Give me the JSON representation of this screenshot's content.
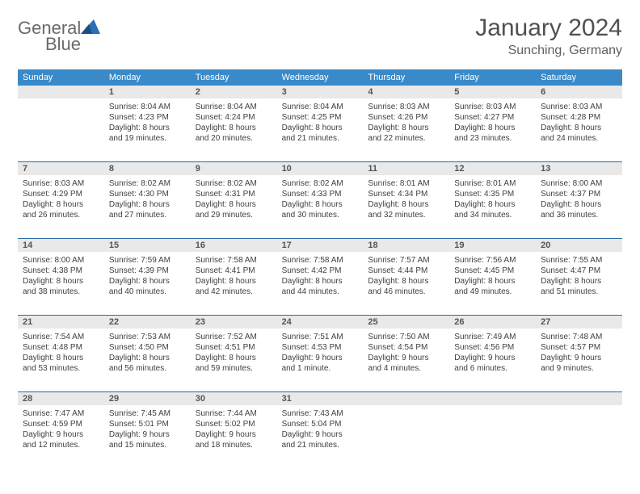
{
  "logo": {
    "word1": "General",
    "word2": "Blue"
  },
  "title": "January 2024",
  "subtitle": "Sunching, Germany",
  "colors": {
    "header_bg": "#3a8ac9",
    "daynum_bg": "#e9e9e9",
    "rule": "#2a6aa8",
    "text": "#404040",
    "title": "#505050",
    "logo_gray": "#6a6a6a",
    "logo_blue": "#2b6fb5"
  },
  "dow": [
    "Sunday",
    "Monday",
    "Tuesday",
    "Wednesday",
    "Thursday",
    "Friday",
    "Saturday"
  ],
  "weeks": [
    [
      {
        "n": "",
        "sr": "",
        "ss": "",
        "d1": "",
        "d2": ""
      },
      {
        "n": "1",
        "sr": "Sunrise: 8:04 AM",
        "ss": "Sunset: 4:23 PM",
        "d1": "Daylight: 8 hours",
        "d2": "and 19 minutes."
      },
      {
        "n": "2",
        "sr": "Sunrise: 8:04 AM",
        "ss": "Sunset: 4:24 PM",
        "d1": "Daylight: 8 hours",
        "d2": "and 20 minutes."
      },
      {
        "n": "3",
        "sr": "Sunrise: 8:04 AM",
        "ss": "Sunset: 4:25 PM",
        "d1": "Daylight: 8 hours",
        "d2": "and 21 minutes."
      },
      {
        "n": "4",
        "sr": "Sunrise: 8:03 AM",
        "ss": "Sunset: 4:26 PM",
        "d1": "Daylight: 8 hours",
        "d2": "and 22 minutes."
      },
      {
        "n": "5",
        "sr": "Sunrise: 8:03 AM",
        "ss": "Sunset: 4:27 PM",
        "d1": "Daylight: 8 hours",
        "d2": "and 23 minutes."
      },
      {
        "n": "6",
        "sr": "Sunrise: 8:03 AM",
        "ss": "Sunset: 4:28 PM",
        "d1": "Daylight: 8 hours",
        "d2": "and 24 minutes."
      }
    ],
    [
      {
        "n": "7",
        "sr": "Sunrise: 8:03 AM",
        "ss": "Sunset: 4:29 PM",
        "d1": "Daylight: 8 hours",
        "d2": "and 26 minutes."
      },
      {
        "n": "8",
        "sr": "Sunrise: 8:02 AM",
        "ss": "Sunset: 4:30 PM",
        "d1": "Daylight: 8 hours",
        "d2": "and 27 minutes."
      },
      {
        "n": "9",
        "sr": "Sunrise: 8:02 AM",
        "ss": "Sunset: 4:31 PM",
        "d1": "Daylight: 8 hours",
        "d2": "and 29 minutes."
      },
      {
        "n": "10",
        "sr": "Sunrise: 8:02 AM",
        "ss": "Sunset: 4:33 PM",
        "d1": "Daylight: 8 hours",
        "d2": "and 30 minutes."
      },
      {
        "n": "11",
        "sr": "Sunrise: 8:01 AM",
        "ss": "Sunset: 4:34 PM",
        "d1": "Daylight: 8 hours",
        "d2": "and 32 minutes."
      },
      {
        "n": "12",
        "sr": "Sunrise: 8:01 AM",
        "ss": "Sunset: 4:35 PM",
        "d1": "Daylight: 8 hours",
        "d2": "and 34 minutes."
      },
      {
        "n": "13",
        "sr": "Sunrise: 8:00 AM",
        "ss": "Sunset: 4:37 PM",
        "d1": "Daylight: 8 hours",
        "d2": "and 36 minutes."
      }
    ],
    [
      {
        "n": "14",
        "sr": "Sunrise: 8:00 AM",
        "ss": "Sunset: 4:38 PM",
        "d1": "Daylight: 8 hours",
        "d2": "and 38 minutes."
      },
      {
        "n": "15",
        "sr": "Sunrise: 7:59 AM",
        "ss": "Sunset: 4:39 PM",
        "d1": "Daylight: 8 hours",
        "d2": "and 40 minutes."
      },
      {
        "n": "16",
        "sr": "Sunrise: 7:58 AM",
        "ss": "Sunset: 4:41 PM",
        "d1": "Daylight: 8 hours",
        "d2": "and 42 minutes."
      },
      {
        "n": "17",
        "sr": "Sunrise: 7:58 AM",
        "ss": "Sunset: 4:42 PM",
        "d1": "Daylight: 8 hours",
        "d2": "and 44 minutes."
      },
      {
        "n": "18",
        "sr": "Sunrise: 7:57 AM",
        "ss": "Sunset: 4:44 PM",
        "d1": "Daylight: 8 hours",
        "d2": "and 46 minutes."
      },
      {
        "n": "19",
        "sr": "Sunrise: 7:56 AM",
        "ss": "Sunset: 4:45 PM",
        "d1": "Daylight: 8 hours",
        "d2": "and 49 minutes."
      },
      {
        "n": "20",
        "sr": "Sunrise: 7:55 AM",
        "ss": "Sunset: 4:47 PM",
        "d1": "Daylight: 8 hours",
        "d2": "and 51 minutes."
      }
    ],
    [
      {
        "n": "21",
        "sr": "Sunrise: 7:54 AM",
        "ss": "Sunset: 4:48 PM",
        "d1": "Daylight: 8 hours",
        "d2": "and 53 minutes."
      },
      {
        "n": "22",
        "sr": "Sunrise: 7:53 AM",
        "ss": "Sunset: 4:50 PM",
        "d1": "Daylight: 8 hours",
        "d2": "and 56 minutes."
      },
      {
        "n": "23",
        "sr": "Sunrise: 7:52 AM",
        "ss": "Sunset: 4:51 PM",
        "d1": "Daylight: 8 hours",
        "d2": "and 59 minutes."
      },
      {
        "n": "24",
        "sr": "Sunrise: 7:51 AM",
        "ss": "Sunset: 4:53 PM",
        "d1": "Daylight: 9 hours",
        "d2": "and 1 minute."
      },
      {
        "n": "25",
        "sr": "Sunrise: 7:50 AM",
        "ss": "Sunset: 4:54 PM",
        "d1": "Daylight: 9 hours",
        "d2": "and 4 minutes."
      },
      {
        "n": "26",
        "sr": "Sunrise: 7:49 AM",
        "ss": "Sunset: 4:56 PM",
        "d1": "Daylight: 9 hours",
        "d2": "and 6 minutes."
      },
      {
        "n": "27",
        "sr": "Sunrise: 7:48 AM",
        "ss": "Sunset: 4:57 PM",
        "d1": "Daylight: 9 hours",
        "d2": "and 9 minutes."
      }
    ],
    [
      {
        "n": "28",
        "sr": "Sunrise: 7:47 AM",
        "ss": "Sunset: 4:59 PM",
        "d1": "Daylight: 9 hours",
        "d2": "and 12 minutes."
      },
      {
        "n": "29",
        "sr": "Sunrise: 7:45 AM",
        "ss": "Sunset: 5:01 PM",
        "d1": "Daylight: 9 hours",
        "d2": "and 15 minutes."
      },
      {
        "n": "30",
        "sr": "Sunrise: 7:44 AM",
        "ss": "Sunset: 5:02 PM",
        "d1": "Daylight: 9 hours",
        "d2": "and 18 minutes."
      },
      {
        "n": "31",
        "sr": "Sunrise: 7:43 AM",
        "ss": "Sunset: 5:04 PM",
        "d1": "Daylight: 9 hours",
        "d2": "and 21 minutes."
      },
      {
        "n": "",
        "sr": "",
        "ss": "",
        "d1": "",
        "d2": ""
      },
      {
        "n": "",
        "sr": "",
        "ss": "",
        "d1": "",
        "d2": ""
      },
      {
        "n": "",
        "sr": "",
        "ss": "",
        "d1": "",
        "d2": ""
      }
    ]
  ]
}
